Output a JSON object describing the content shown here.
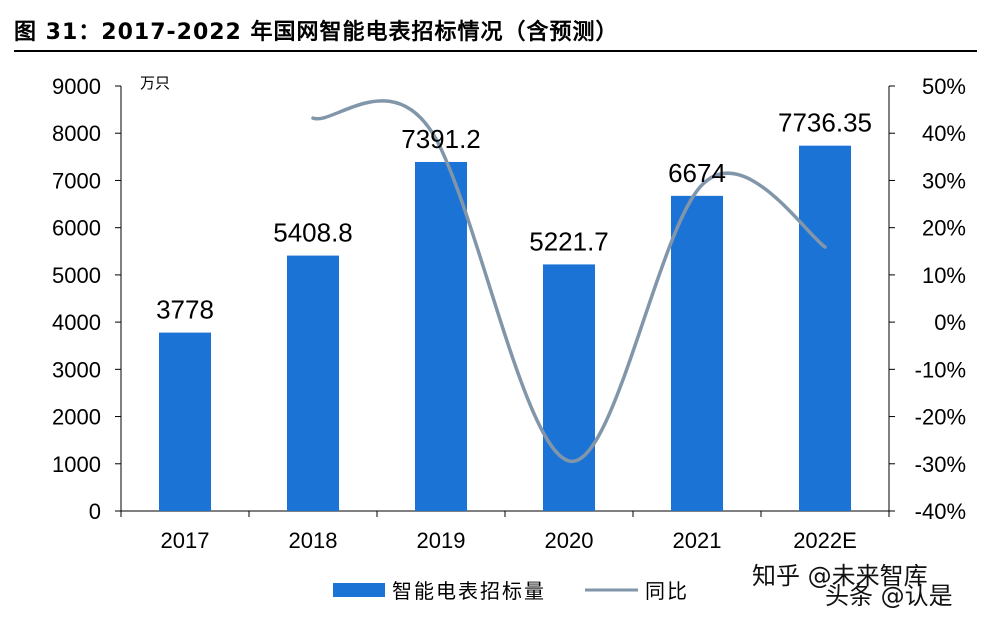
{
  "title": "图 31：2017-2022 年国网智能电表招标情况（含预测）",
  "watermark": {
    "line1": "知乎 @未来智库",
    "line2": "头条 @认是"
  },
  "colors": {
    "bar": "#1b73d6",
    "line": "#8296aa",
    "axis": "#000000"
  },
  "chart_data": {
    "type": "bar",
    "categories": [
      "2017",
      "2018",
      "2019",
      "2020",
      "2021",
      "2022E"
    ],
    "series": [
      {
        "name": "智能电表招标量",
        "type": "bar",
        "axis": "left",
        "values": [
          3778,
          5408.8,
          7391.2,
          5221.7,
          6674,
          7736.35
        ],
        "labels": [
          "3778",
          "5408.8",
          "7391.2",
          "5221.7",
          "6674",
          "7736.35"
        ]
      },
      {
        "name": "同比",
        "type": "line",
        "axis": "right",
        "smooth": true,
        "values": [
          null,
          43.2,
          36.7,
          -29.4,
          27.8,
          15.9
        ]
      }
    ],
    "y_left": {
      "unit": "万只",
      "min": 0,
      "max": 9000,
      "step": 1000,
      "ticks": [
        "0",
        "1000",
        "2000",
        "3000",
        "4000",
        "5000",
        "6000",
        "7000",
        "8000",
        "9000"
      ]
    },
    "y_right": {
      "min": -40,
      "max": 50,
      "step": 10,
      "ticks": [
        "-40%",
        "-30%",
        "-20%",
        "-10%",
        "0%",
        "10%",
        "20%",
        "30%",
        "40%",
        "50%"
      ]
    },
    "legend": [
      "智能电表招标量",
      "同比"
    ],
    "legend_position": "bottom"
  }
}
